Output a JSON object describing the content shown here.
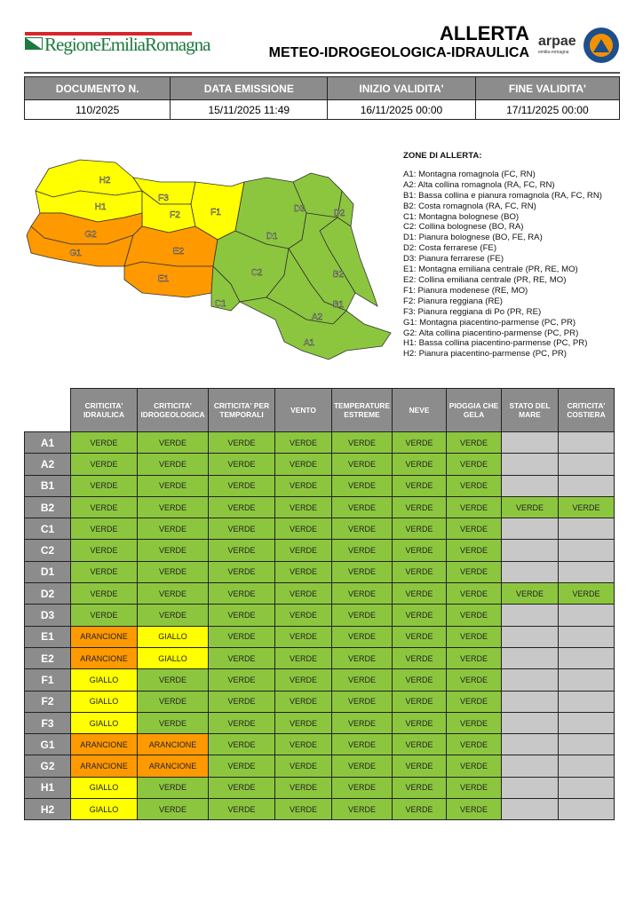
{
  "header": {
    "logo_text": "RegioneEmiliaRomagna",
    "title": "ALLERTA",
    "subtitle": "METEO-IDROGEOLOGICA-IDRAULICA",
    "arpae": "arpae",
    "arpae_sub": "emilia-romagna"
  },
  "doc_table": {
    "headers": [
      "DOCUMENTO N.",
      "DATA EMISSIONE",
      "INIZIO VALIDITA'",
      "FINE VALIDITA'"
    ],
    "values": [
      "110/2025",
      "15/11/2025 11:49",
      "16/11/2025 00:00",
      "17/11/2025 00:00"
    ]
  },
  "zones": {
    "title": "ZONE DI ALLERTA:",
    "items": [
      "A1: Montagna romagnola (FC, RN)",
      "A2: Alta collina romagnola (RA, FC, RN)",
      "B1: Bassa collina e pianura romagnola (RA, FC, RN)",
      "B2: Costa romagnola (RA, FC, RN)",
      "C1: Montagna bolognese (BO)",
      "C2: Collina bolognese (BO, RA)",
      "D1: Pianura bolognese (BO, FE, RA)",
      "D2: Costa ferrarese (FE)",
      "D3: Pianura ferrarese (FE)",
      "E1: Montagna emiliana centrale (PR, RE, MO)",
      "E2: Collina emiliana centrale (PR, RE, MO)",
      "F1: Pianura modenese (RE, MO)",
      "F2: Pianura reggiana (RE)",
      "F3: Pianura reggiana di Po (PR, RE)",
      "G1: Montagna piacentino-parmense (PC, PR)",
      "G2: Alta collina piacentino-parmense (PC, PR)",
      "H1: Bassa collina piacentino-parmense (PC, PR)",
      "H2: Pianura piacentino-parmense (PC, PR)"
    ]
  },
  "colors": {
    "VERDE": "#8cc63f",
    "GIALLO": "#ffff00",
    "ARANCIONE": "#ff9900",
    "empty": "#c8c8c8"
  },
  "map_levels": {
    "A1": "VERDE",
    "A2": "VERDE",
    "B1": "VERDE",
    "B2": "VERDE",
    "C1": "VERDE",
    "C2": "VERDE",
    "D1": "VERDE",
    "D2": "VERDE",
    "D3": "VERDE",
    "E1": "ARANCIONE",
    "E2": "ARANCIONE",
    "F1": "GIALLO",
    "F2": "GIALLO",
    "F3": "GIALLO",
    "G1": "ARANCIONE",
    "G2": "ARANCIONE",
    "H1": "GIALLO",
    "H2": "GIALLO"
  },
  "alert_table": {
    "columns": [
      "CRITICITA' IDRAULICA",
      "CRITICITA' IDROGEOLOGICA",
      "CRITICITA' PER TEMPORALI",
      "VENTO",
      "TEMPERATURE ESTREME",
      "NEVE",
      "PIOGGIA CHE GELA",
      "STATO DEL MARE",
      "CRITICITA' COSTIERA"
    ],
    "rows": [
      {
        "zone": "A1",
        "values": [
          "VERDE",
          "VERDE",
          "VERDE",
          "VERDE",
          "VERDE",
          "VERDE",
          "VERDE",
          "",
          ""
        ]
      },
      {
        "zone": "A2",
        "values": [
          "VERDE",
          "VERDE",
          "VERDE",
          "VERDE",
          "VERDE",
          "VERDE",
          "VERDE",
          "",
          ""
        ]
      },
      {
        "zone": "B1",
        "values": [
          "VERDE",
          "VERDE",
          "VERDE",
          "VERDE",
          "VERDE",
          "VERDE",
          "VERDE",
          "",
          ""
        ]
      },
      {
        "zone": "B2",
        "values": [
          "VERDE",
          "VERDE",
          "VERDE",
          "VERDE",
          "VERDE",
          "VERDE",
          "VERDE",
          "VERDE",
          "VERDE"
        ]
      },
      {
        "zone": "C1",
        "values": [
          "VERDE",
          "VERDE",
          "VERDE",
          "VERDE",
          "VERDE",
          "VERDE",
          "VERDE",
          "",
          ""
        ]
      },
      {
        "zone": "C2",
        "values": [
          "VERDE",
          "VERDE",
          "VERDE",
          "VERDE",
          "VERDE",
          "VERDE",
          "VERDE",
          "",
          ""
        ]
      },
      {
        "zone": "D1",
        "values": [
          "VERDE",
          "VERDE",
          "VERDE",
          "VERDE",
          "VERDE",
          "VERDE",
          "VERDE",
          "",
          ""
        ]
      },
      {
        "zone": "D2",
        "values": [
          "VERDE",
          "VERDE",
          "VERDE",
          "VERDE",
          "VERDE",
          "VERDE",
          "VERDE",
          "VERDE",
          "VERDE"
        ]
      },
      {
        "zone": "D3",
        "values": [
          "VERDE",
          "VERDE",
          "VERDE",
          "VERDE",
          "VERDE",
          "VERDE",
          "VERDE",
          "",
          ""
        ]
      },
      {
        "zone": "E1",
        "values": [
          "ARANCIONE",
          "GIALLO",
          "VERDE",
          "VERDE",
          "VERDE",
          "VERDE",
          "VERDE",
          "",
          ""
        ]
      },
      {
        "zone": "E2",
        "values": [
          "ARANCIONE",
          "GIALLO",
          "VERDE",
          "VERDE",
          "VERDE",
          "VERDE",
          "VERDE",
          "",
          ""
        ]
      },
      {
        "zone": "F1",
        "values": [
          "GIALLO",
          "VERDE",
          "VERDE",
          "VERDE",
          "VERDE",
          "VERDE",
          "VERDE",
          "",
          ""
        ]
      },
      {
        "zone": "F2",
        "values": [
          "GIALLO",
          "VERDE",
          "VERDE",
          "VERDE",
          "VERDE",
          "VERDE",
          "VERDE",
          "",
          ""
        ]
      },
      {
        "zone": "F3",
        "values": [
          "GIALLO",
          "VERDE",
          "VERDE",
          "VERDE",
          "VERDE",
          "VERDE",
          "VERDE",
          "",
          ""
        ]
      },
      {
        "zone": "G1",
        "values": [
          "ARANCIONE",
          "ARANCIONE",
          "VERDE",
          "VERDE",
          "VERDE",
          "VERDE",
          "VERDE",
          "",
          ""
        ]
      },
      {
        "zone": "G2",
        "values": [
          "ARANCIONE",
          "ARANCIONE",
          "VERDE",
          "VERDE",
          "VERDE",
          "VERDE",
          "VERDE",
          "",
          ""
        ]
      },
      {
        "zone": "H1",
        "values": [
          "GIALLO",
          "VERDE",
          "VERDE",
          "VERDE",
          "VERDE",
          "VERDE",
          "VERDE",
          "",
          ""
        ]
      },
      {
        "zone": "H2",
        "values": [
          "GIALLO",
          "VERDE",
          "VERDE",
          "VERDE",
          "VERDE",
          "VERDE",
          "VERDE",
          "",
          ""
        ]
      }
    ]
  }
}
